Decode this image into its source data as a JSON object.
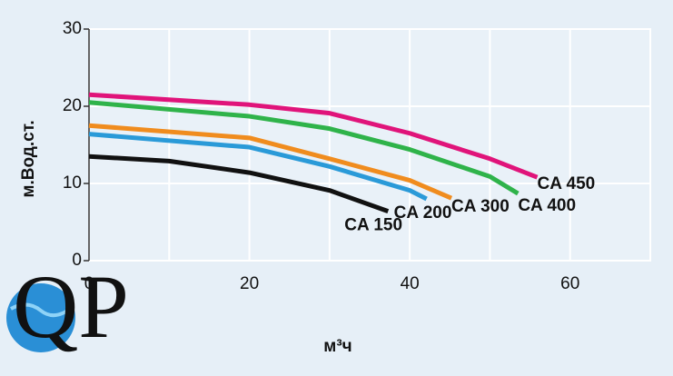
{
  "chart_data": {
    "type": "line",
    "xlabel": "м³ч",
    "ylabel": "м.Вод.ст.",
    "xlim": [
      0,
      70
    ],
    "ylim": [
      0,
      30
    ],
    "xticks": [
      0,
      20,
      40,
      60
    ],
    "yticks": [
      0,
      10,
      20,
      30
    ],
    "x_minor_grid": [
      10,
      30,
      50
    ],
    "grid": true,
    "series": [
      {
        "name": "CA 150",
        "color": "#111111",
        "x": [
          0,
          10,
          20,
          30,
          37.3
        ],
        "values": [
          13.5,
          12.9,
          11.4,
          9.1,
          6.4
        ]
      },
      {
        "name": "CA 200",
        "color": "#2a9ad8",
        "x": [
          0,
          20,
          30,
          40,
          42.1
        ],
        "values": [
          16.4,
          14.7,
          12.2,
          9.1,
          8.0
        ]
      },
      {
        "name": "CA 300",
        "color": "#f08c1e",
        "x": [
          0,
          20,
          30,
          40,
          45.2
        ],
        "values": [
          17.5,
          15.9,
          13.2,
          10.4,
          8.1
        ]
      },
      {
        "name": "CA 400",
        "color": "#2fb34a",
        "x": [
          0,
          20,
          30,
          40,
          50,
          53.5
        ],
        "values": [
          20.5,
          18.7,
          17.1,
          14.4,
          10.9,
          8.7
        ]
      },
      {
        "name": "CA 450",
        "color": "#e0147a",
        "x": [
          0,
          20,
          30,
          40,
          50,
          55.9
        ],
        "values": [
          21.5,
          20.2,
          19.1,
          16.5,
          13.2,
          10.8
        ]
      }
    ]
  },
  "logo_text": "QP"
}
